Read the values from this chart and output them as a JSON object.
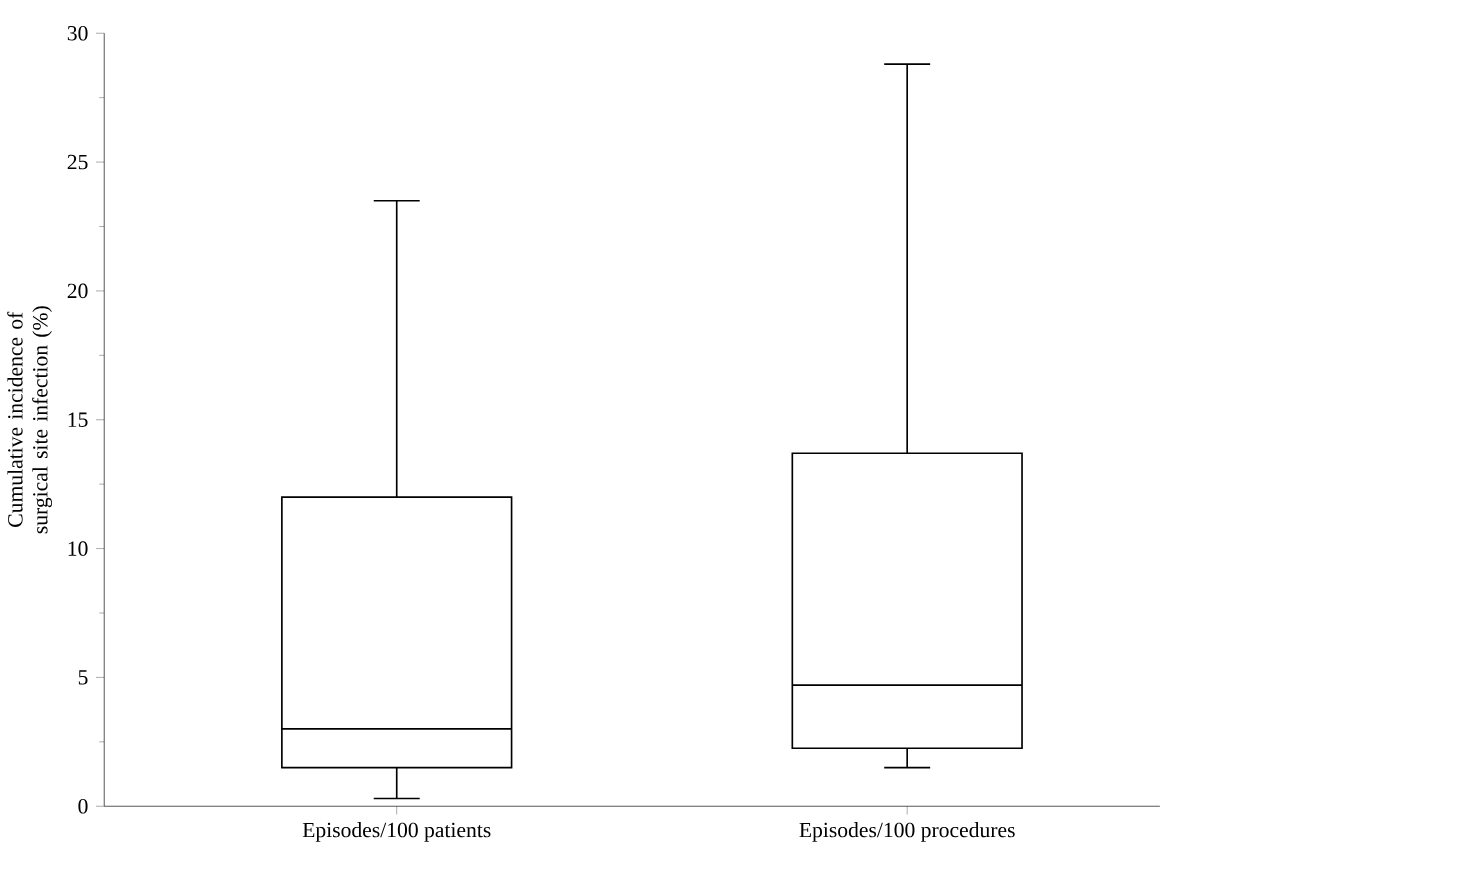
{
  "chart_data": {
    "type": "box",
    "categories": [
      "Episodes/100 patients",
      "Episodes/100 procedures"
    ],
    "ylabel": "Cumulative incidence of surgical site infection (%)",
    "ylim": [
      0,
      30
    ],
    "yticks": [
      0,
      5,
      10,
      15,
      20,
      25,
      30
    ],
    "color": "#000000",
    "boxes": [
      {
        "low": 0.3,
        "q1": 1.5,
        "median": 3.0,
        "q3": 12.0,
        "high": 23.5
      },
      {
        "low": 1.5,
        "q1": 2.25,
        "median": 4.7,
        "q3": 13.7,
        "high": 28.8
      }
    ]
  }
}
